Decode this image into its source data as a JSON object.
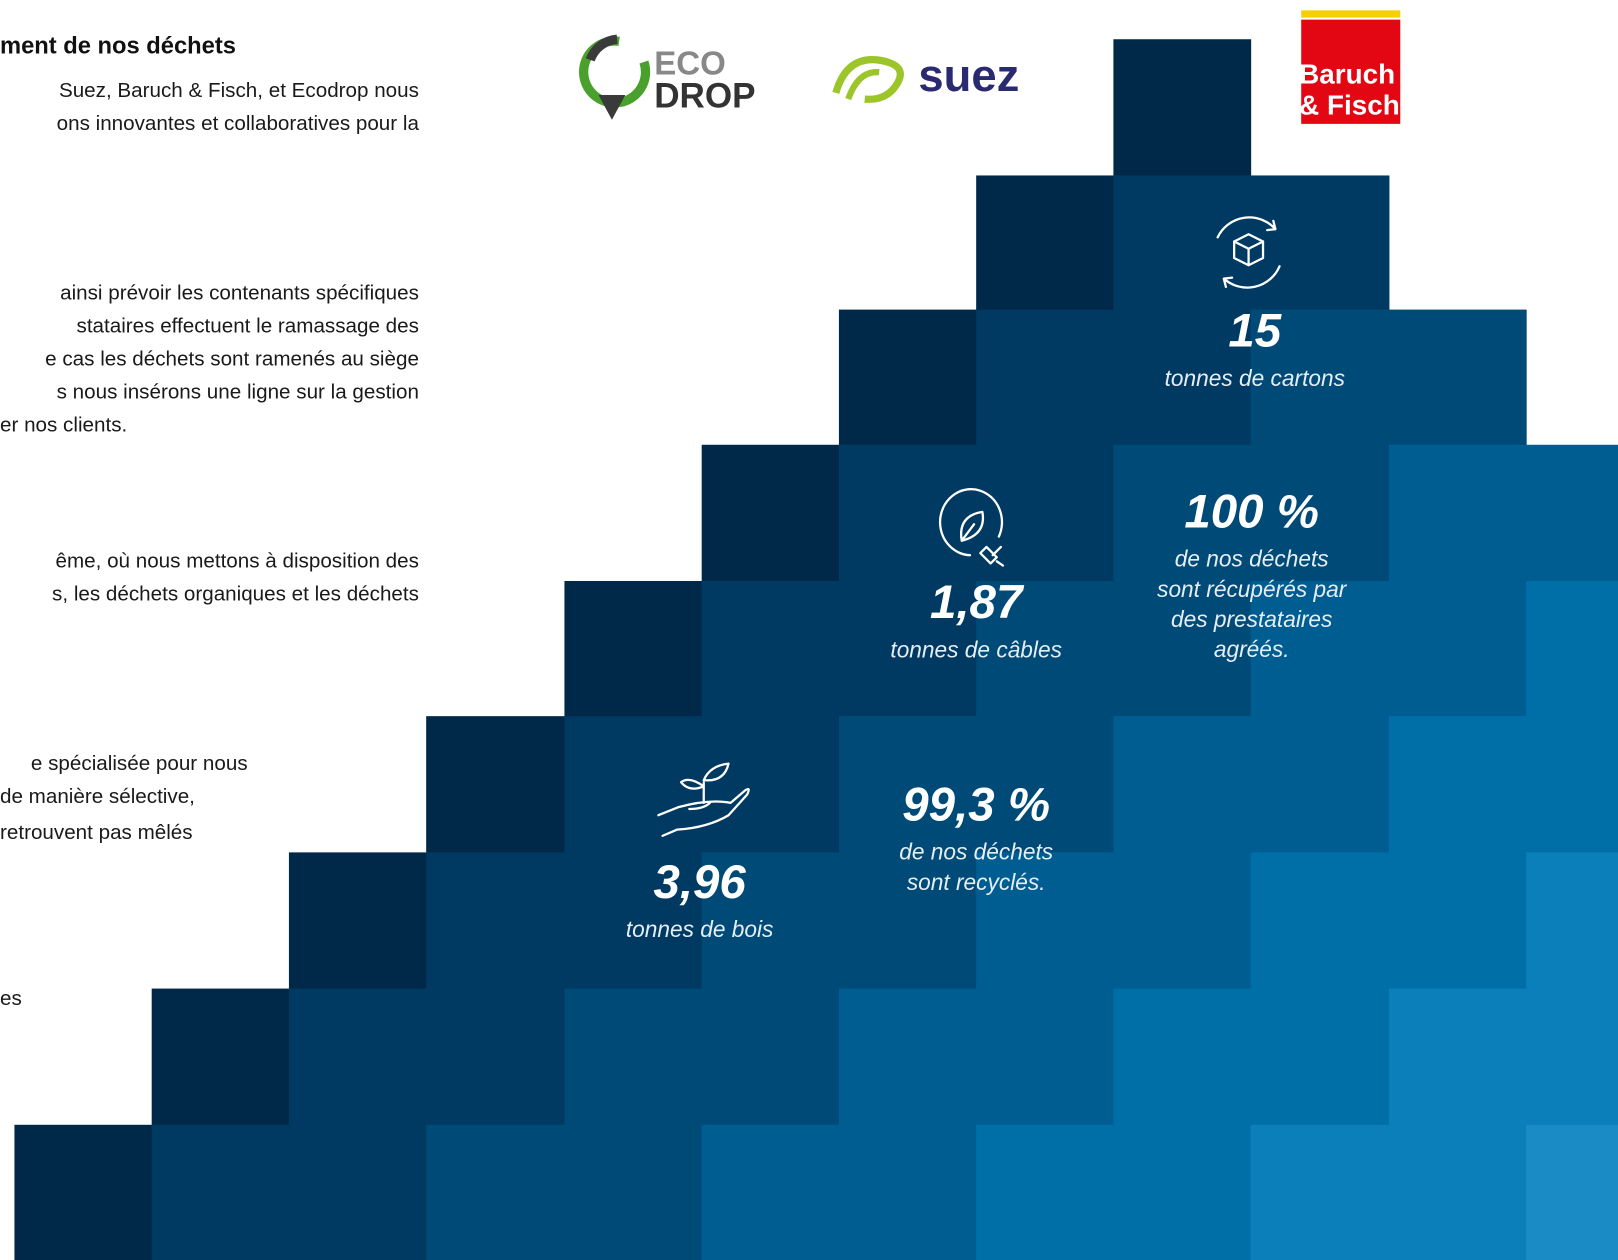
{
  "text": {
    "title": "ment de nos déchets",
    "lines": [
      "Suez, Baruch & Fisch, et Ecodrop nous",
      "ons innovantes et collaboratives pour la",
      "ainsi prévoir les contenants spécifiques",
      "stataires effectuent le ramassage des",
      "e cas les déchets sont ramenés au siège",
      "s nous insérons une ligne sur la gestion",
      "er nos clients.",
      "ême, où nous mettons à disposition des",
      "s, les déchets organiques et les déchets",
      "e spécialisée pour nous",
      "de manière sélective,",
      "retrouvent pas mêlés",
      "es"
    ]
  },
  "logos": {
    "ecodrop": [
      "ECO",
      "DROP"
    ],
    "suez": "suez",
    "baruch": [
      "Baruch",
      "& Fisch"
    ]
  },
  "stats": [
    {
      "number": "15",
      "caption": [
        "tonnes de cartons"
      ]
    },
    {
      "number": "100 %",
      "caption": [
        "de nos déchets",
        "sont récupérés par",
        "des prestataires",
        "agréés."
      ]
    },
    {
      "number": "1,87",
      "caption": [
        "tonnes de câbles"
      ]
    },
    {
      "number": "99,3 %",
      "caption": [
        "de nos déchets",
        "sont recyclés."
      ]
    },
    {
      "number": "3,96",
      "caption": [
        "tonnes de bois"
      ]
    }
  ]
}
